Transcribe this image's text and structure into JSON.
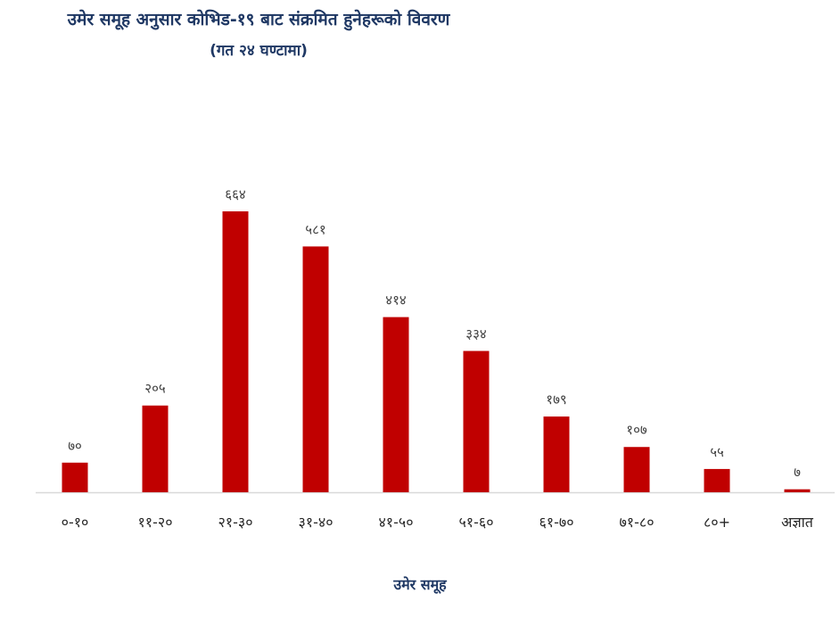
{
  "chart_data": {
    "type": "bar",
    "title": "उमेर समूह अनुसार कोभिड-१९ बाट संक्रमित हुनेहरूको विवरण",
    "subtitle": "(गत २४ घण्टामा)",
    "xlabel": "उमेर समूह",
    "ylabel": "",
    "categories": [
      "०-१०",
      "११-२०",
      "२१-३०",
      "३१-४०",
      "४१-५०",
      "५१-६०",
      "६१-७०",
      "७१-८०",
      "८०+",
      "अज्ञात"
    ],
    "values": [
      70,
      205,
      664,
      581,
      414,
      334,
      179,
      107,
      55,
      7
    ],
    "value_labels": [
      "७०",
      "२०५",
      "६६४",
      "५८१",
      "४१४",
      "३३४",
      "१७९",
      "१०७",
      "५५",
      "७"
    ],
    "ylim": [
      0,
      664
    ],
    "grid": false,
    "legend": "none",
    "colors": {
      "bar": "#c00000",
      "title": "#1f3864",
      "axis": "#d9d9d9"
    }
  }
}
